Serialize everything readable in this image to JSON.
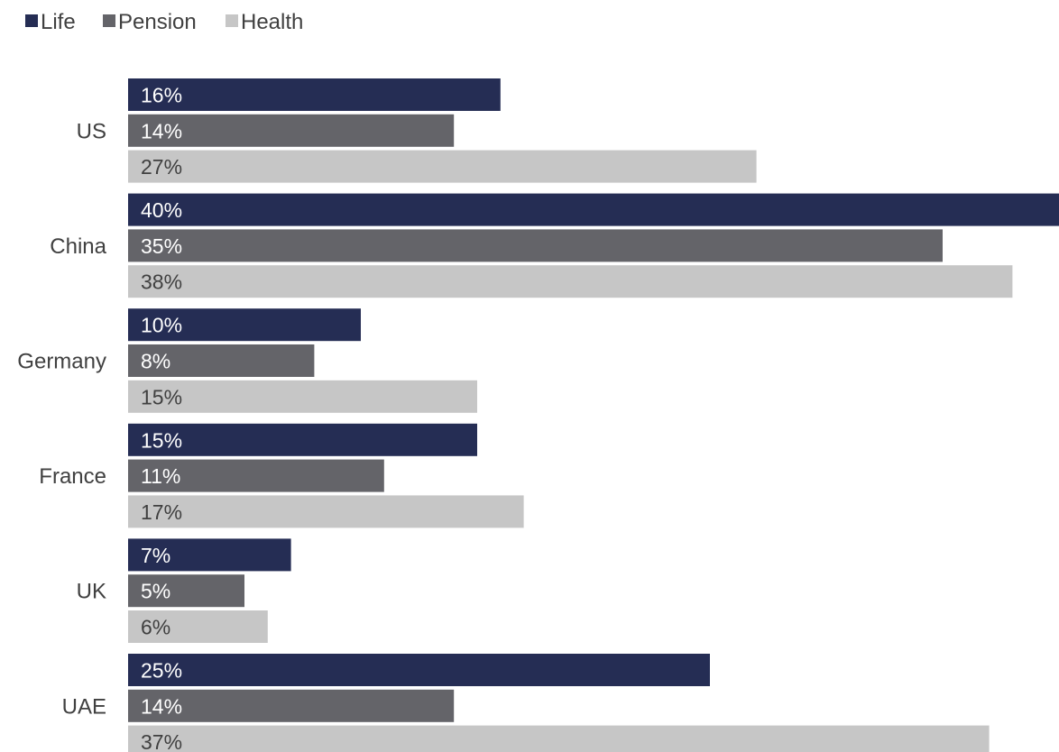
{
  "chart_data": {
    "type": "bar",
    "orientation": "horizontal",
    "categories": [
      "US",
      "China",
      "Germany",
      "France",
      "UK",
      "UAE"
    ],
    "series": [
      {
        "name": "Life",
        "color": "#252D54",
        "label_color": "#FFFFFF",
        "values": [
          16,
          40,
          10,
          15,
          7,
          25
        ]
      },
      {
        "name": "Pension",
        "color": "#646469",
        "label_color": "#FFFFFF",
        "values": [
          14,
          35,
          8,
          11,
          5,
          14
        ]
      },
      {
        "name": "Health",
        "color": "#C6C6C6",
        "label_color": "#404040",
        "values": [
          27,
          38,
          15,
          17,
          6,
          37
        ]
      }
    ],
    "value_suffix": "%",
    "xlim": [
      0,
      40
    ],
    "grid": false,
    "legend_position": "top-left",
    "title": "",
    "xlabel": "",
    "ylabel": ""
  }
}
